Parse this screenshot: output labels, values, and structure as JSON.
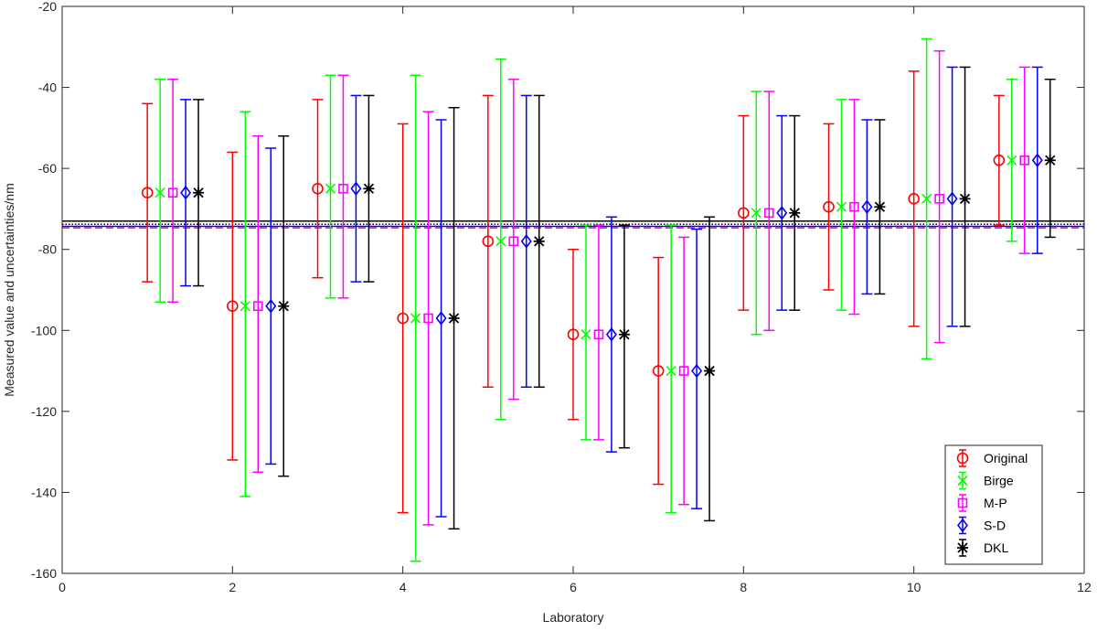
{
  "chart_data": {
    "type": "errorbar",
    "title": "",
    "xlabel": "Laboratory",
    "ylabel": "Measured value and uncertainties/nm",
    "xlim": [
      0,
      12
    ],
    "ylim": [
      -160,
      -20
    ],
    "xticks": [
      0,
      2,
      4,
      6,
      8,
      10,
      12
    ],
    "yticks": [
      -160,
      -140,
      -120,
      -100,
      -80,
      -60,
      -40,
      -20
    ],
    "grid": false,
    "legend_position": "bottom-right",
    "laboratories": [
      1,
      2,
      3,
      4,
      5,
      6,
      7,
      8,
      9,
      10,
      11
    ],
    "values": [
      -66,
      -94,
      -65,
      -97,
      -78,
      -101,
      -110,
      -71,
      -69.5,
      -67.5,
      -58
    ],
    "series": [
      {
        "name": "Original",
        "color": "#ff0000",
        "marker": "circle",
        "x_offset": 0.0,
        "upper": [
          -44,
          -56,
          -43,
          -49,
          -42,
          -80,
          -82,
          -47,
          -49,
          -36,
          -42
        ],
        "lower": [
          -88,
          -132,
          -87,
          -145,
          -114,
          -122,
          -138,
          -95,
          -90,
          -99,
          -74
        ]
      },
      {
        "name": "Birge",
        "color": "#00ff00",
        "marker": "x",
        "x_offset": 0.15,
        "upper": [
          -38,
          -46,
          -37,
          -37,
          -33,
          -74,
          -74,
          -41,
          -43,
          -28,
          -38
        ],
        "lower": [
          -93,
          -141,
          -92,
          -157,
          -122,
          -127,
          -145,
          -101,
          -95,
          -107,
          -78
        ]
      },
      {
        "name": "M-P",
        "color": "#ff00ff",
        "marker": "square",
        "x_offset": 0.3,
        "upper": [
          -38,
          -52,
          -37,
          -46,
          -38,
          -74,
          -77,
          -41,
          -43,
          -31,
          -35
        ],
        "lower": [
          -93,
          -135,
          -92,
          -148,
          -117,
          -127,
          -143,
          -100,
          -96,
          -103,
          -81
        ]
      },
      {
        "name": "S-D",
        "color": "#0000ff",
        "marker": "diamond",
        "x_offset": 0.45,
        "upper": [
          -43,
          -55,
          -42,
          -48,
          -42,
          -72,
          -75,
          -47,
          -48,
          -35,
          -35
        ],
        "lower": [
          -89,
          -133,
          -88,
          -146,
          -114,
          -130,
          -144,
          -95,
          -91,
          -99,
          -81
        ]
      },
      {
        "name": "DKL",
        "color": "#000000",
        "marker": "star",
        "x_offset": 0.6,
        "upper": [
          -43,
          -52,
          -42,
          -45,
          -42,
          -74,
          -72,
          -47,
          -48,
          -35,
          -38
        ],
        "lower": [
          -89,
          -136,
          -88,
          -149,
          -114,
          -129,
          -147,
          -95,
          -91,
          -99,
          -77
        ]
      }
    ],
    "reference_lines": [
      {
        "y": -73,
        "color": "#000000",
        "style": "solid"
      },
      {
        "y": -73.8,
        "color": "#000000",
        "style": "dotted"
      },
      {
        "y": -74.3,
        "color": "#0000ff",
        "style": "solid"
      },
      {
        "y": -74.7,
        "color": "#ff00ff",
        "style": "dashed"
      }
    ]
  }
}
